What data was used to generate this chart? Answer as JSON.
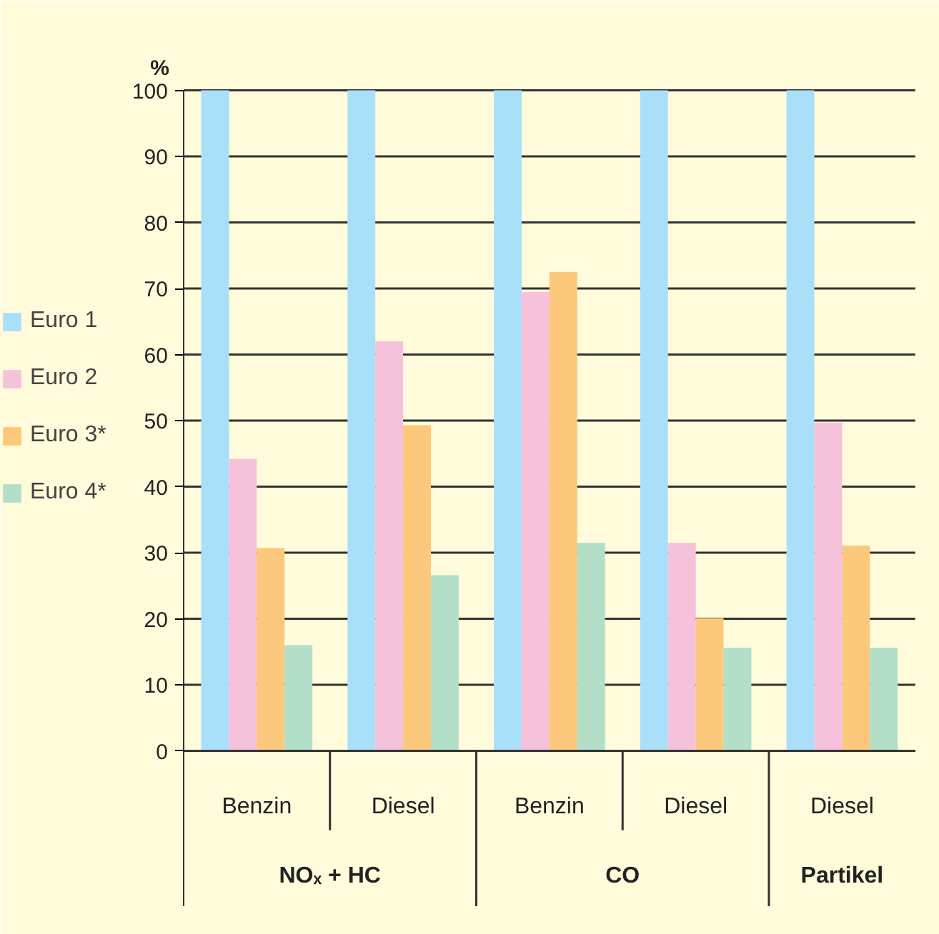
{
  "chart_data": {
    "type": "bar",
    "ylabel": "%",
    "categories": [
      "Benzin",
      "Diesel",
      "Benzin",
      "Diesel",
      "Diesel"
    ],
    "series": [
      {
        "name": "Euro 1",
        "color": "#aadffa",
        "values": [
          100,
          100,
          100,
          100,
          100
        ]
      },
      {
        "name": "Euro 2",
        "color": "#f6c2db",
        "values": [
          44.2,
          62,
          69.5,
          31.5,
          49.7
        ]
      },
      {
        "name": "Euro 3*",
        "color": "#fcc97c",
        "values": [
          30.7,
          49.3,
          72.5,
          20.1,
          31.1
        ]
      },
      {
        "name": "Euro 4*",
        "color": "#b3dec8",
        "values": [
          16,
          26.6,
          31.5,
          15.6,
          15.6
        ]
      }
    ],
    "ylim": [
      0,
      100
    ],
    "yticks": [
      0,
      10,
      20,
      30,
      40,
      50,
      60,
      70,
      80,
      90,
      100
    ],
    "grid": "y",
    "legend": "left",
    "annotations": [
      "NOₓ + HC",
      "CO",
      "Partikel"
    ]
  }
}
